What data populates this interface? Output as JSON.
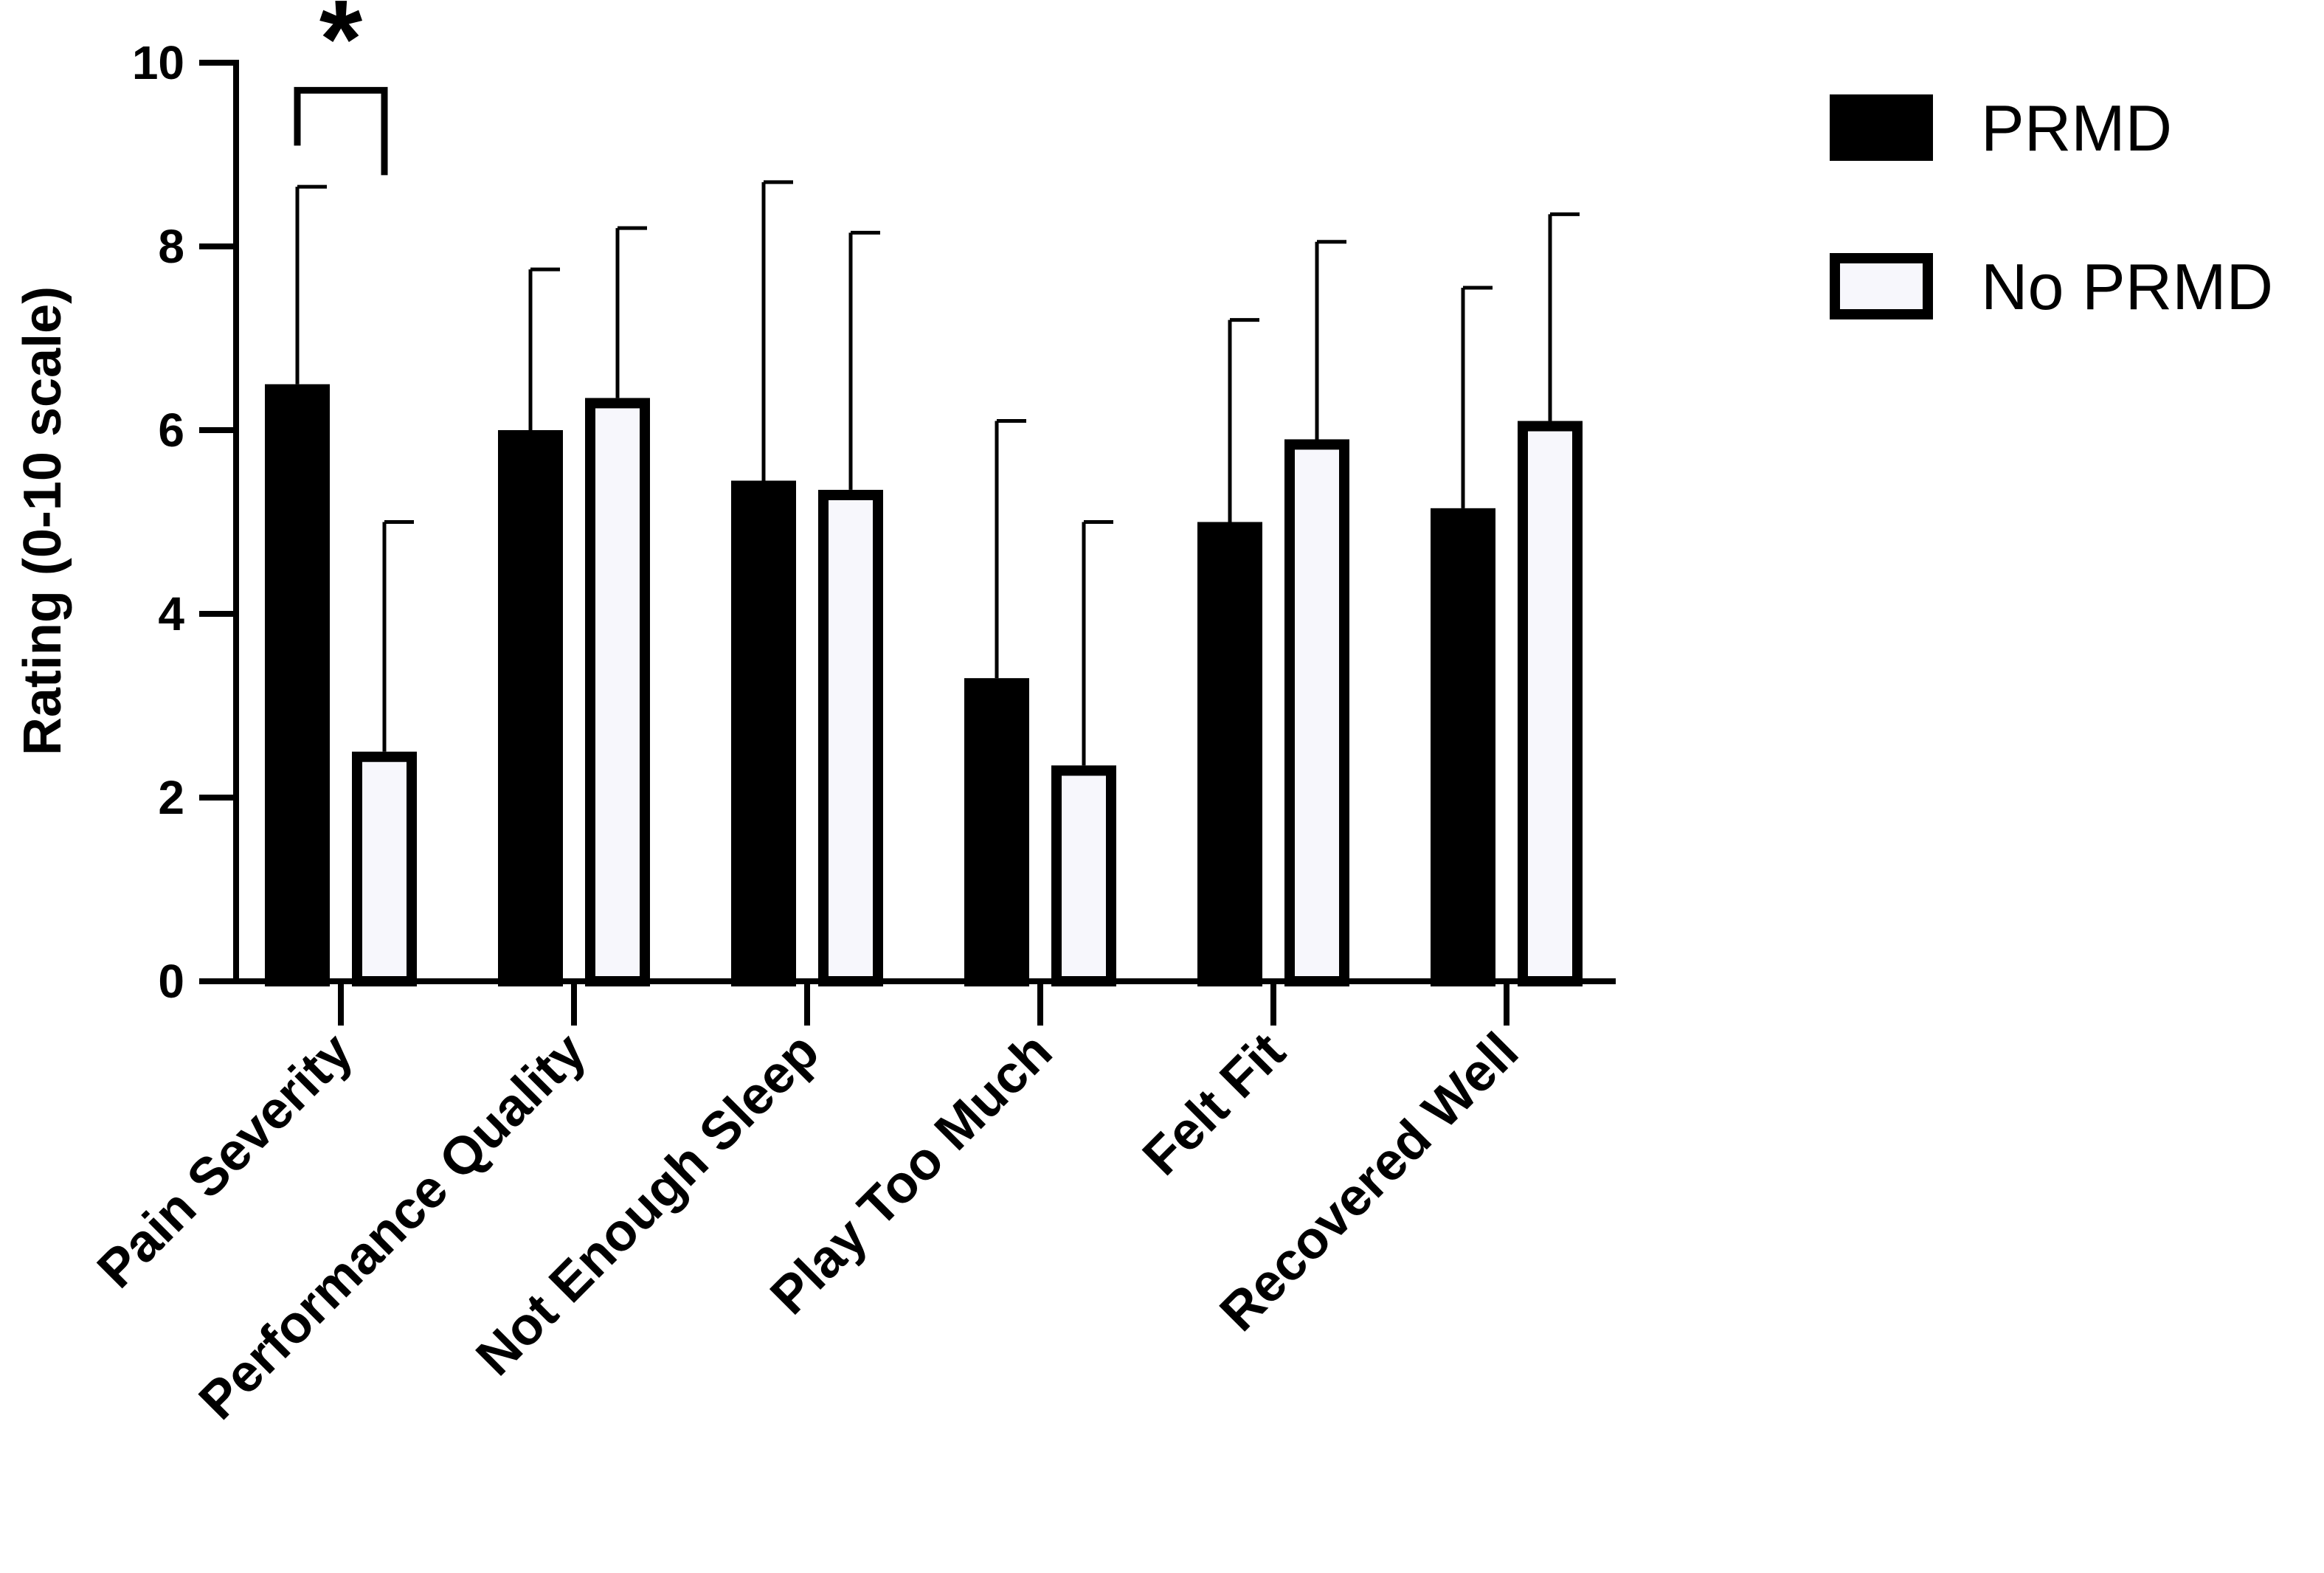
{
  "chart_data": {
    "type": "bar",
    "title": "",
    "xlabel": "",
    "ylabel": "Rating (0-10 scale)",
    "ylim": [
      0,
      10
    ],
    "yticks": [
      0,
      2,
      4,
      6,
      8,
      10
    ],
    "grid": false,
    "legend_position": "top-right",
    "categories": [
      "Pain Severity",
      "Performance Quality",
      "Not Enough Sleep",
      "Play Too Much",
      "Felt Fit",
      "Recovered Well"
    ],
    "series": [
      {
        "name": "PRMD",
        "values": [
          6.5,
          6.0,
          5.45,
          3.3,
          5.0,
          5.15
        ],
        "error_upper": [
          8.65,
          7.75,
          8.7,
          6.1,
          7.2,
          7.55
        ],
        "fill": "#000000"
      },
      {
        "name": "No PRMD",
        "values": [
          2.5,
          6.35,
          5.35,
          2.35,
          5.9,
          6.1
        ],
        "error_upper": [
          5.0,
          8.2,
          8.15,
          5.0,
          8.05,
          8.35
        ],
        "fill": "#f7f7fc"
      }
    ],
    "annotations": [
      {
        "text": "*",
        "category_index": 0,
        "y": 9.7
      }
    ]
  }
}
